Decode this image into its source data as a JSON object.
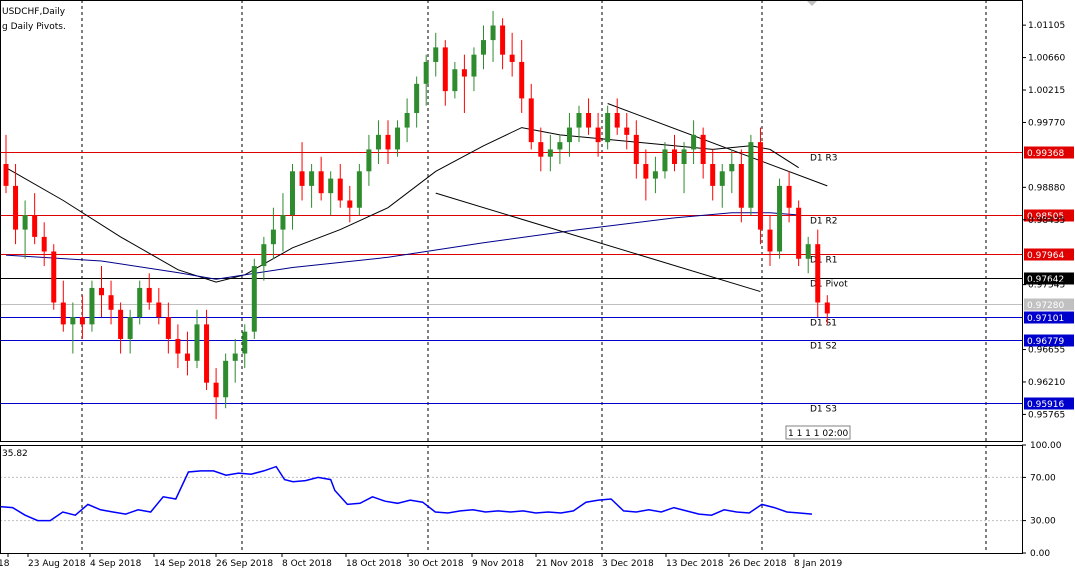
{
  "header": {
    "symbol_label": "USDCHF,Daily",
    "indicator_label": "g Daily Pivots."
  },
  "timer_label": "1 1 1 1 02:00",
  "colors": {
    "bull": "#2e8b2e",
    "bear": "#ff0000",
    "resistance": "#e00000",
    "support": "#0000cc",
    "pivot": "#000000",
    "ma_fast": "#000000",
    "ma_slow": "#00008b",
    "oscillator": "#0000ff",
    "grid": "#000000"
  },
  "chart_data": [
    {
      "type": "candlestick",
      "title": "USDCHF,Daily",
      "ylim": [
        0.954,
        1.0145
      ],
      "price_ticks": [
        "1.01105",
        "1.00660",
        "1.00215",
        "0.99770",
        "0.98880",
        "0.98435",
        "0.97545",
        "0.96655",
        "0.96210",
        "0.95765"
      ],
      "date_labels": [
        "18",
        "23 Aug 2018",
        "4 Sep 2018",
        "14 Sep 2018",
        "26 Sep 2018",
        "8 Oct 2018",
        "18 Oct 2018",
        "30 Oct 2018",
        "9 Nov 2018",
        "21 Nov 2018",
        "3 Dec 2018",
        "13 Dec 2018",
        "26 Dec 2018",
        "8 Jan 2019"
      ],
      "pivots": [
        {
          "name": "D1 R3",
          "value": 0.99368,
          "price_label": "0.99368",
          "kind": "resistance"
        },
        {
          "name": "D1 R2",
          "value": 0.98505,
          "price_label": "0.98505",
          "kind": "resistance"
        },
        {
          "name": "D1 R1",
          "value": 0.97964,
          "price_label": "0.97964",
          "kind": "resistance"
        },
        {
          "name": "D1 Pivot",
          "value": 0.97642,
          "price_label": "0.97642",
          "kind": "pivot"
        },
        {
          "name": "D1 S1",
          "value": 0.97101,
          "price_label": "0.97101",
          "kind": "support"
        },
        {
          "name": "D1 S2",
          "value": 0.96779,
          "price_label": "0.96779",
          "kind": "support"
        },
        {
          "name": "D1 S3",
          "value": 0.95916,
          "price_label": "0.95916",
          "kind": "support"
        }
      ],
      "current_price": {
        "value": 0.9728,
        "label": "0.97280"
      },
      "candles": [
        [
          0.992,
          0.996,
          0.988,
          0.989
        ],
        [
          0.989,
          0.992,
          0.981,
          0.983
        ],
        [
          0.983,
          0.987,
          0.979,
          0.985
        ],
        [
          0.985,
          0.988,
          0.981,
          0.982
        ],
        [
          0.982,
          0.984,
          0.978,
          0.98
        ],
        [
          0.98,
          0.981,
          0.972,
          0.973
        ],
        [
          0.973,
          0.976,
          0.969,
          0.97
        ],
        [
          0.97,
          0.973,
          0.966,
          0.971
        ],
        [
          0.971,
          0.974,
          0.968,
          0.97
        ],
        [
          0.97,
          0.976,
          0.969,
          0.975
        ],
        [
          0.975,
          0.978,
          0.971,
          0.974
        ],
        [
          0.974,
          0.976,
          0.97,
          0.972
        ],
        [
          0.972,
          0.973,
          0.966,
          0.968
        ],
        [
          0.968,
          0.972,
          0.966,
          0.971
        ],
        [
          0.971,
          0.976,
          0.97,
          0.975
        ],
        [
          0.975,
          0.977,
          0.972,
          0.973
        ],
        [
          0.973,
          0.975,
          0.97,
          0.971
        ],
        [
          0.971,
          0.973,
          0.966,
          0.968
        ],
        [
          0.968,
          0.97,
          0.964,
          0.966
        ],
        [
          0.966,
          0.969,
          0.963,
          0.965
        ],
        [
          0.965,
          0.972,
          0.964,
          0.97
        ],
        [
          0.97,
          0.972,
          0.961,
          0.962
        ],
        [
          0.962,
          0.964,
          0.957,
          0.96
        ],
        [
          0.96,
          0.966,
          0.9585,
          0.965
        ],
        [
          0.965,
          0.968,
          0.962,
          0.966
        ],
        [
          0.966,
          0.97,
          0.964,
          0.969
        ],
        [
          0.969,
          0.979,
          0.968,
          0.978
        ],
        [
          0.978,
          0.982,
          0.976,
          0.981
        ],
        [
          0.981,
          0.986,
          0.979,
          0.983
        ],
        [
          0.983,
          0.988,
          0.98,
          0.985
        ],
        [
          0.985,
          0.992,
          0.983,
          0.991
        ],
        [
          0.991,
          0.995,
          0.987,
          0.989
        ],
        [
          0.989,
          0.992,
          0.986,
          0.991
        ],
        [
          0.991,
          0.993,
          0.987,
          0.988
        ],
        [
          0.988,
          0.991,
          0.985,
          0.99
        ],
        [
          0.99,
          0.992,
          0.986,
          0.987
        ],
        [
          0.987,
          0.989,
          0.984,
          0.986
        ],
        [
          0.986,
          0.992,
          0.985,
          0.991
        ],
        [
          0.991,
          0.996,
          0.989,
          0.994
        ],
        [
          0.994,
          0.998,
          0.992,
          0.996
        ],
        [
          0.996,
          0.998,
          0.992,
          0.994
        ],
        [
          0.994,
          0.998,
          0.993,
          0.997
        ],
        [
          0.997,
          1.001,
          0.995,
          0.999
        ],
        [
          0.999,
          1.004,
          0.997,
          1.003
        ],
        [
          1.003,
          1.007,
          1.0,
          1.006
        ],
        [
          1.006,
          1.01,
          1.004,
          1.008
        ],
        [
          1.008,
          1.009,
          1.0,
          1.002
        ],
        [
          1.002,
          1.006,
          1.001,
          1.005
        ],
        [
          1.005,
          1.007,
          0.999,
          1.004
        ],
        [
          1.004,
          1.008,
          1.002,
          1.007
        ],
        [
          1.007,
          1.011,
          1.005,
          1.009
        ],
        [
          1.009,
          1.013,
          1.006,
          1.011
        ],
        [
          1.011,
          1.012,
          1.005,
          1.007
        ],
        [
          1.007,
          1.01,
          1.004,
          1.006
        ],
        [
          1.006,
          1.009,
          0.999,
          1.001
        ],
        [
          1.001,
          1.003,
          0.994,
          0.995
        ],
        [
          0.995,
          0.997,
          0.991,
          0.993
        ],
        [
          0.993,
          0.996,
          0.991,
          0.994
        ],
        [
          0.994,
          0.996,
          0.992,
          0.995
        ],
        [
          0.995,
          0.999,
          0.993,
          0.997
        ],
        [
          0.997,
          1.0,
          0.995,
          0.999
        ],
        [
          0.999,
          1.001,
          0.996,
          0.997
        ],
        [
          0.997,
          0.999,
          0.993,
          0.995
        ],
        [
          0.995,
          1.0,
          0.994,
          0.999
        ],
        [
          0.999,
          1.001,
          0.996,
          0.997
        ],
        [
          0.997,
          0.999,
          0.994,
          0.996
        ],
        [
          0.996,
          0.998,
          0.99,
          0.992
        ],
        [
          0.992,
          0.994,
          0.987,
          0.99
        ],
        [
          0.99,
          0.993,
          0.988,
          0.991
        ],
        [
          0.991,
          0.995,
          0.99,
          0.994
        ],
        [
          0.994,
          0.996,
          0.991,
          0.992
        ],
        [
          0.992,
          0.995,
          0.988,
          0.994
        ],
        [
          0.994,
          0.998,
          0.992,
          0.996
        ],
        [
          0.996,
          0.997,
          0.99,
          0.992
        ],
        [
          0.992,
          0.994,
          0.987,
          0.989
        ],
        [
          0.989,
          0.992,
          0.986,
          0.991
        ],
        [
          0.991,
          0.994,
          0.988,
          0.992
        ],
        [
          0.992,
          0.994,
          0.984,
          0.986
        ],
        [
          0.986,
          0.996,
          0.985,
          0.995
        ],
        [
          0.995,
          0.997,
          0.981,
          0.983
        ],
        [
          0.983,
          0.985,
          0.978,
          0.98
        ],
        [
          0.98,
          0.99,
          0.979,
          0.989
        ],
        [
          0.989,
          0.991,
          0.984,
          0.986
        ],
        [
          0.986,
          0.987,
          0.978,
          0.979
        ],
        [
          0.979,
          0.982,
          0.977,
          0.981
        ],
        [
          0.981,
          0.983,
          0.971,
          0.973
        ],
        [
          0.973,
          0.974,
          0.97,
          0.9715
        ]
      ],
      "moving_averages": [
        {
          "name": "fast",
          "values": [
            [
              0,
              0.9915
            ],
            [
              6,
              0.987
            ],
            [
              12,
              0.982
            ],
            [
              18,
              0.9775
            ],
            [
              22,
              0.9758
            ],
            [
              25,
              0.9768
            ],
            [
              30,
              0.9805
            ],
            [
              35,
              0.983
            ],
            [
              40,
              0.986
            ],
            [
              45,
              0.991
            ],
            [
              50,
              0.9945
            ],
            [
              54,
              0.997
            ],
            [
              58,
              0.996
            ],
            [
              62,
              0.9955
            ],
            [
              66,
              0.995
            ],
            [
              70,
              0.9945
            ],
            [
              74,
              0.994
            ],
            [
              78,
              0.9945
            ],
            [
              80,
              0.994
            ],
            [
              83,
              0.9915
            ]
          ]
        },
        {
          "name": "slow",
          "values": [
            [
              0,
              0.9795
            ],
            [
              10,
              0.9787
            ],
            [
              18,
              0.9771
            ],
            [
              22,
              0.9762
            ],
            [
              30,
              0.9778
            ],
            [
              40,
              0.9792
            ],
            [
              50,
              0.9812
            ],
            [
              60,
              0.983
            ],
            [
              70,
              0.9846
            ],
            [
              76,
              0.9853
            ],
            [
              80,
              0.9853
            ],
            [
              83,
              0.985
            ]
          ]
        }
      ],
      "trendlines": [
        {
          "from": [
            63,
            1.0003
          ],
          "to": [
            86,
            0.989
          ]
        },
        {
          "from": [
            45,
            0.988
          ],
          "to": [
            79,
            0.9745
          ]
        }
      ]
    },
    {
      "type": "line",
      "title": "",
      "value_label": "35.82",
      "ylim": [
        0,
        100
      ],
      "yticks": [
        "100.00",
        "70.00",
        "30.00",
        "0.00"
      ],
      "levels": [
        70,
        30
      ],
      "series": [
        {
          "values": [
            [
              0,
              43
            ],
            [
              3,
              42
            ],
            [
              6,
              35
            ],
            [
              9,
              30
            ],
            [
              12,
              30
            ],
            [
              15,
              38
            ],
            [
              18,
              35
            ],
            [
              21,
              45
            ],
            [
              24,
              40
            ],
            [
              27,
              38
            ],
            [
              30,
              36
            ],
            [
              33,
              40
            ],
            [
              36,
              38
            ],
            [
              39,
              52
            ],
            [
              42,
              50
            ],
            [
              45,
              75
            ],
            [
              48,
              76
            ],
            [
              51,
              76
            ],
            [
              54,
              72
            ],
            [
              57,
              74
            ],
            [
              60,
              73
            ],
            [
              63,
              76
            ],
            [
              66,
              80
            ],
            [
              68,
              68
            ],
            [
              70,
              66
            ],
            [
              73,
              67
            ],
            [
              76,
              70
            ],
            [
              79,
              68
            ],
            [
              80,
              58
            ],
            [
              83,
              45
            ],
            [
              86,
              46
            ],
            [
              89,
              52
            ],
            [
              92,
              48
            ],
            [
              95,
              46
            ],
            [
              98,
              49
            ],
            [
              101,
              47
            ],
            [
              104,
              38
            ],
            [
              107,
              37
            ],
            [
              110,
              39
            ],
            [
              113,
              40
            ],
            [
              116,
              38
            ],
            [
              119,
              39
            ],
            [
              122,
              38
            ],
            [
              125,
              39
            ],
            [
              128,
              37
            ],
            [
              131,
              38
            ],
            [
              134,
              37
            ],
            [
              137,
              39
            ],
            [
              140,
              47
            ],
            [
              143,
              49
            ],
            [
              146,
              50
            ],
            [
              149,
              39
            ],
            [
              152,
              38
            ],
            [
              155,
              40
            ],
            [
              158,
              38
            ],
            [
              161,
              42
            ],
            [
              164,
              39
            ],
            [
              167,
              36
            ],
            [
              170,
              35
            ],
            [
              173,
              40
            ],
            [
              176,
              38
            ],
            [
              179,
              37
            ],
            [
              182,
              45
            ],
            [
              185,
              42
            ],
            [
              188,
              38
            ],
            [
              191,
              37
            ],
            [
              194,
              36
            ]
          ]
        }
      ]
    }
  ]
}
